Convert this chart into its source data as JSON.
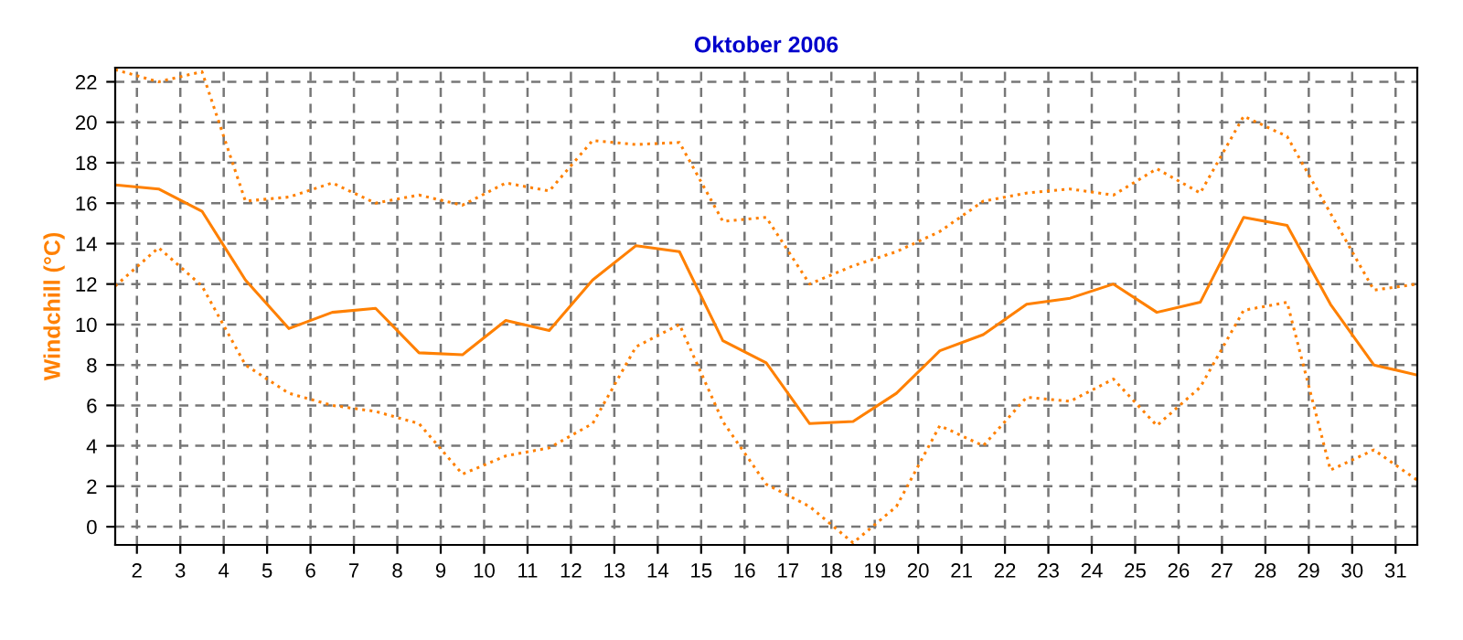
{
  "chart_data": {
    "type": "line",
    "title": "Oktober 2006",
    "ylabel": "Windchill (°C)",
    "x": [
      1.5,
      2.5,
      3.5,
      4.5,
      5.5,
      6.5,
      7.5,
      8.5,
      9.5,
      10.5,
      11.5,
      12.5,
      13.5,
      14.5,
      15.5,
      16.5,
      17.5,
      18.5,
      19.5,
      20.5,
      21.5,
      22.5,
      23.5,
      24.5,
      25.5,
      26.5,
      27.5,
      28.5,
      29.5,
      30.5,
      31.5
    ],
    "series": [
      {
        "color": "#ff8000",
        "line_style": "dotted",
        "values": [
          22.6,
          22.0,
          22.5,
          16.1,
          16.3,
          17.0,
          16.0,
          16.4,
          15.9,
          17.0,
          16.6,
          19.1,
          18.9,
          19.0,
          15.1,
          15.3,
          12.0,
          12.9,
          13.6,
          14.6,
          16.1,
          16.5,
          16.7,
          16.4,
          17.7,
          16.5,
          20.3,
          19.3,
          15.5,
          11.7,
          12.0
        ]
      },
      {
        "color": "#ff8000",
        "line_style": "solid",
        "values": [
          16.9,
          16.7,
          15.6,
          12.2,
          9.8,
          10.6,
          10.8,
          8.6,
          8.5,
          10.2,
          9.7,
          12.2,
          13.9,
          13.6,
          9.2,
          8.1,
          5.1,
          5.2,
          6.6,
          8.7,
          9.5,
          11.0,
          11.3,
          12.0,
          10.6,
          11.1,
          15.3,
          14.9,
          11.0,
          8.0,
          7.5
        ]
      },
      {
        "color": "#ff8000",
        "line_style": "dotted",
        "values": [
          11.9,
          13.8,
          11.9,
          8.0,
          6.6,
          6.0,
          5.7,
          5.1,
          2.6,
          3.5,
          3.9,
          5.1,
          8.9,
          10.0,
          5.2,
          2.1,
          1.0,
          -0.8,
          1.0,
          5.0,
          4.0,
          6.4,
          6.2,
          7.3,
          5.0,
          6.9,
          10.7,
          11.1,
          2.8,
          3.8,
          2.3
        ]
      }
    ],
    "xlim": [
      1.5,
      31.5
    ],
    "xticks": [
      2,
      3,
      4,
      5,
      6,
      7,
      8,
      9,
      10,
      11,
      12,
      13,
      14,
      15,
      16,
      17,
      18,
      19,
      20,
      21,
      22,
      23,
      24,
      25,
      26,
      27,
      28,
      29,
      30,
      31
    ],
    "ylim": [
      -0.9,
      22.7
    ],
    "yticks": [
      0,
      2,
      4,
      6,
      8,
      10,
      12,
      14,
      16,
      18,
      20,
      22
    ],
    "grid": true,
    "legend": false
  }
}
